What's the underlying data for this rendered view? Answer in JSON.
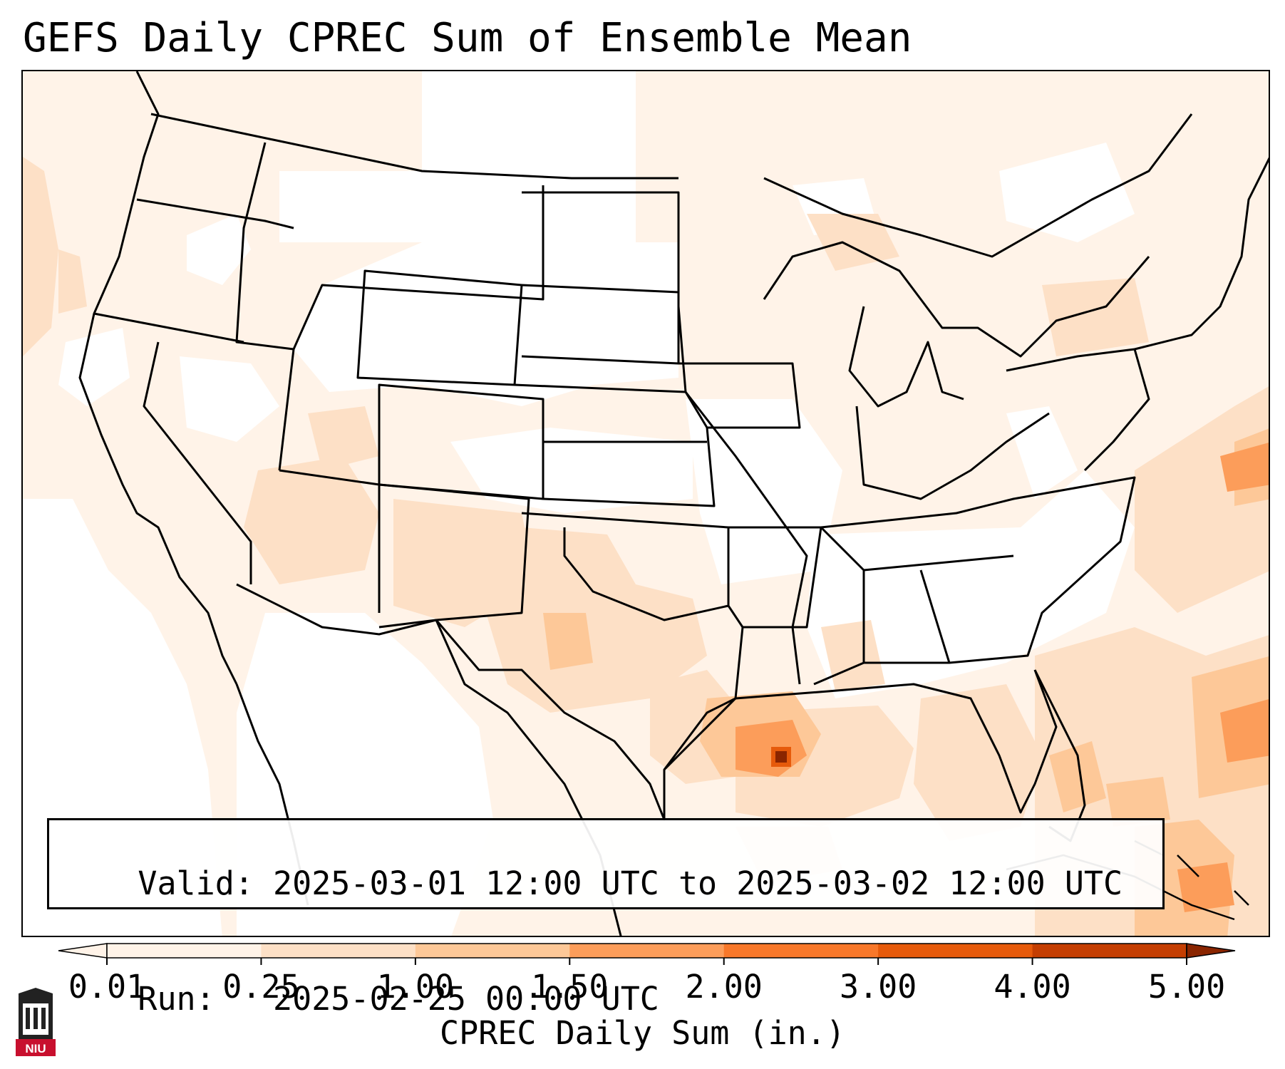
{
  "title": "GEFS Daily CPREC Sum of Ensemble Mean",
  "info": {
    "valid_label": "Valid:",
    "valid_value": "2025-03-01 12:00 UTC to 2025-03-02 12:00 UTC",
    "run_label": "Run:",
    "run_value": "2025-02-25 00:00 UTC"
  },
  "colorbar": {
    "label": "CPREC Daily Sum (in.)",
    "ticks": [
      "0.01",
      "0.25",
      "1.00",
      "1.50",
      "2.00",
      "3.00",
      "4.00",
      "5.00"
    ],
    "colors": [
      "#fff3e8",
      "#fde0c6",
      "#fdc898",
      "#fc9d5a",
      "#f8782a",
      "#e65a0b",
      "#c43e02",
      "#8a2500"
    ],
    "extend": "both"
  },
  "map": {
    "background_color": "#ffffff",
    "state_line_color": "#000000",
    "light_shade": "#fff3e8",
    "medium_shade": "#fde0c6",
    "heavy_shade": "#fdc898",
    "max_shade": "#8a2500"
  },
  "logo": {
    "text": "NIU",
    "color": "#c8102e"
  }
}
